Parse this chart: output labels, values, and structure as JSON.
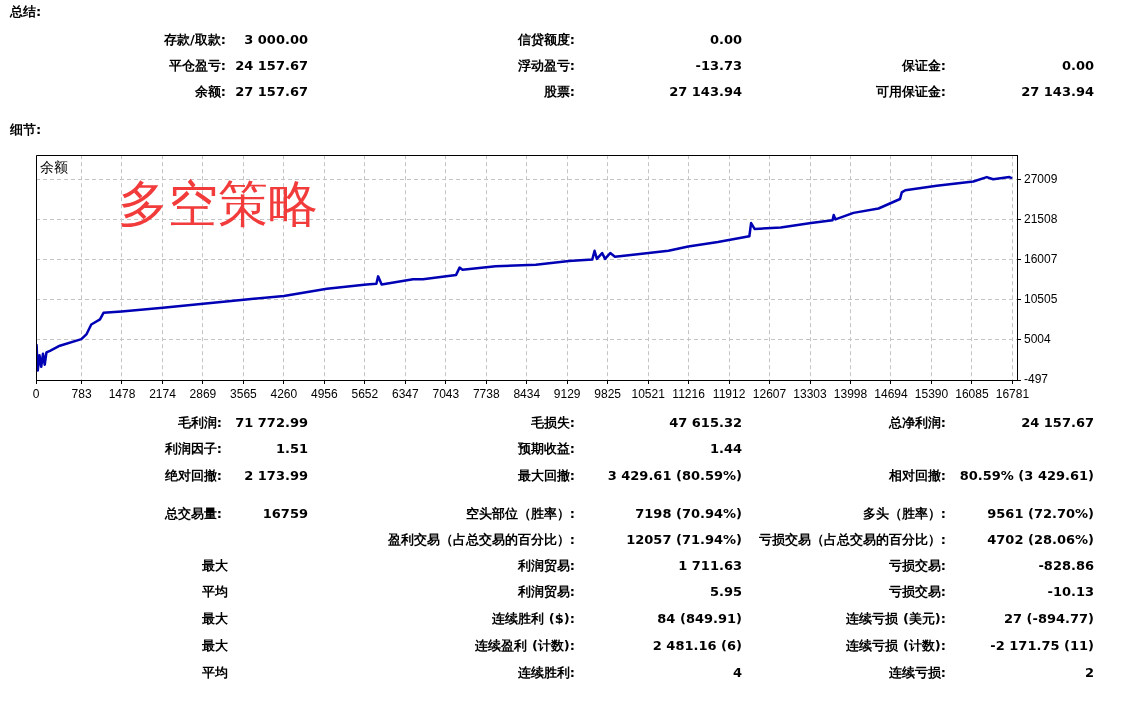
{
  "chart_data": {
    "type": "line",
    "title": "多空策略",
    "ylabel": "余额",
    "x": [
      0,
      10,
      30,
      60,
      90,
      120,
      150,
      180,
      240,
      410,
      780,
      870,
      950,
      1100,
      1160,
      1470,
      2180,
      2830,
      3570,
      4260,
      4540,
      5000,
      5680,
      5850,
      5880,
      5940,
      6480,
      6650,
      7220,
      7280,
      7330,
      7900,
      8590,
      9160,
      9560,
      9600,
      9640,
      9730,
      9780,
      9870,
      9950,
      10300,
      10870,
      11210,
      11720,
      12260,
      12290,
      12350,
      12800,
      13320,
      13690,
      13710,
      13740,
      14050,
      14480,
      14850,
      14880,
      14940,
      15480,
      16110,
      16340,
      16450,
      16730,
      16760
    ],
    "series": [
      {
        "color": "#0000b4",
        "values": [
          3000,
          4300,
          800,
          2900,
          1300,
          3100,
          1600,
          3300,
          3500,
          4200,
          5100,
          5800,
          7100,
          7800,
          8700,
          8900,
          9400,
          9900,
          10500,
          11000,
          11400,
          12000,
          12600,
          12700,
          13700,
          12600,
          13300,
          13300,
          13900,
          14900,
          14600,
          15100,
          15300,
          15800,
          16000,
          17200,
          16100,
          16900,
          16100,
          16900,
          16400,
          16700,
          17200,
          17800,
          18400,
          19200,
          21000,
          20200,
          20400,
          21000,
          21400,
          22100,
          21500,
          22400,
          23000,
          24300,
          25200,
          25500,
          26100,
          26700,
          27300,
          27000,
          27300,
          27200
        ]
      }
    ],
    "xlim": [
      0,
      16860
    ],
    "xticks": [
      0,
      783,
      1478,
      2174,
      2869,
      3565,
      4260,
      4956,
      5652,
      6347,
      7043,
      7738,
      8434,
      9129,
      9825,
      10521,
      11216,
      11912,
      12607,
      13303,
      13998,
      14694,
      15390,
      16085,
      16781
    ],
    "ylim": [
      -497,
      30300
    ],
    "yticks": [
      -497,
      5004,
      10505,
      16007,
      21508,
      27009
    ],
    "grid": true,
    "marker": "none",
    "annotations": [
      "总结:",
      "存款/取款:",
      "3 000.00",
      "信贷额度:",
      "0.00",
      "平仓盈亏:",
      "24 157.67",
      "浮动盈亏:",
      "-13.73",
      "保证金:",
      "0.00",
      "余额:",
      "27 157.67",
      "股票:",
      "27 143.94",
      "可用保证金:",
      "27 143.94",
      "细节:",
      "毛利润:",
      "71 772.99",
      "毛损失:",
      "47 615.32",
      "总净利润:",
      "24 157.67",
      "利润因子:",
      "1.51",
      "预期收益:",
      "1.44",
      "绝对回撤:",
      "2 173.99",
      "最大回撤:",
      "3 429.61 (80.59%)",
      "相对回撤:",
      "80.59% (3 429.61)",
      "总交易量:",
      "16759",
      "空头部位（胜率）:",
      "7198 (70.94%)",
      "多头（胜率）:",
      "9561 (72.70%)",
      "盈利交易（占总交易的百分比）:",
      "12057 (71.94%)",
      "亏损交易（占总交易的百分比）:",
      "4702 (28.06%)",
      "最大",
      "利润贸易:",
      "1 711.63",
      "亏损交易:",
      "-828.86",
      "平均",
      "利润贸易:",
      "5.95",
      "亏损交易:",
      "-10.13",
      "最大",
      "连续胜利 ($):",
      "84 (849.91)",
      "连续亏损 (美元):",
      "27 (-894.77)",
      "最大",
      "连续盈利 (计数):",
      "2 481.16 (6)",
      "连续亏损 (计数):",
      "-2 171.75 (11)",
      "平均",
      "连续胜利:",
      "4",
      "连续亏损:",
      "2"
    ]
  }
}
